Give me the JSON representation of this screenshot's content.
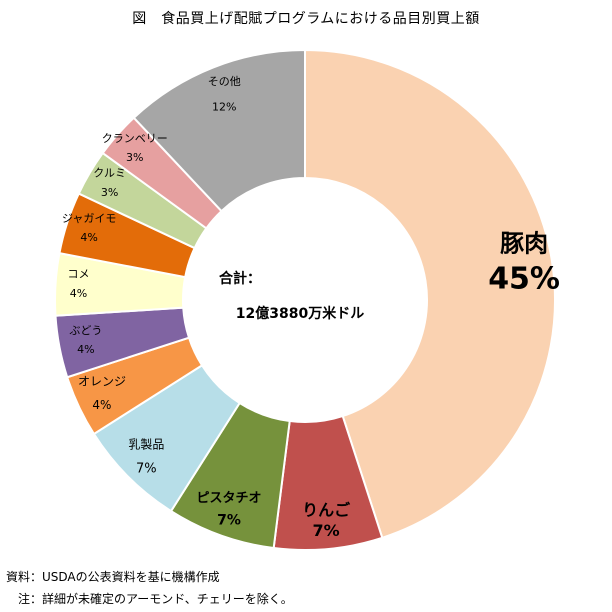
{
  "title": "図　食品買上げ配賦プログラムにおける品目別買上額",
  "center": {
    "label": "合計：",
    "value": "12億3880万米ドル"
  },
  "notes": {
    "source": "資料：USDAの公表資料を基に機構作成",
    "note": "　注：詳細が未確定のアーモンド、チェリーを除く。"
  },
  "chart_data": {
    "type": "pie",
    "variant": "donut",
    "title": "図　食品買上げ配賦プログラムにおける品目別買上額",
    "total_label": "合計：",
    "total_value": "12億3880万米ドル",
    "categories": [
      "豚肉",
      "りんご",
      "ピスタチオ",
      "乳製品",
      "オレンジ",
      "ぶどう",
      "コメ",
      "ジャガイモ",
      "クルミ",
      "クランベリー",
      "その他"
    ],
    "values": [
      45,
      7,
      7,
      7,
      4,
      4,
      4,
      4,
      3,
      3,
      12
    ],
    "labels": [
      "45%",
      "7%",
      "7%",
      "7%",
      "4%",
      "4%",
      "4%",
      "4%",
      "3%",
      "3%",
      "12%"
    ],
    "colors": [
      "#FAD2B1",
      "#C0504D",
      "#76923C",
      "#B7DEE8",
      "#F79646",
      "#8064A2",
      "#FFFFCC",
      "#E36C09",
      "#C3D69B",
      "#E6A0A0",
      "#A6A6A6"
    ],
    "legend": "none"
  }
}
